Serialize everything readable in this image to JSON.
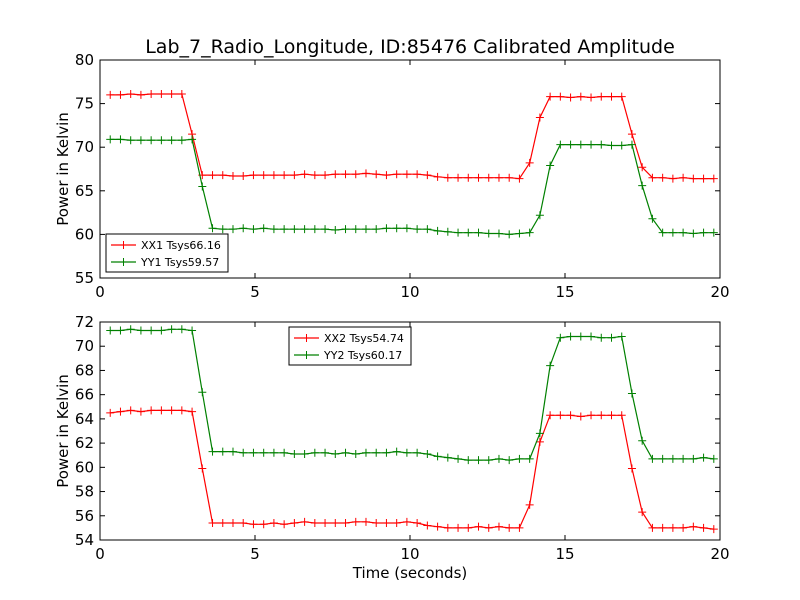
{
  "title": "Lab_7_Radio_Longitude, ID:85476 Calibrated Amplitude",
  "chart_data": [
    {
      "type": "line",
      "xlabel": "",
      "ylabel": "Power in Kelvin",
      "xlim": [
        0,
        20
      ],
      "ylim": [
        55,
        80
      ],
      "xticks": [
        0,
        5,
        10,
        15,
        20
      ],
      "yticks": [
        55,
        60,
        65,
        70,
        75,
        80
      ],
      "grid": false,
      "legend_position": "lower-left",
      "series": [
        {
          "name": "XX1 Tsys66.16",
          "color": "#ff0000",
          "marker": "+",
          "x": [
            0.33,
            0.66,
            0.99,
            1.32,
            1.65,
            1.98,
            2.31,
            2.64,
            2.97,
            3.3,
            3.63,
            3.96,
            4.29,
            4.62,
            4.95,
            5.28,
            5.61,
            5.94,
            6.27,
            6.6,
            6.93,
            7.26,
            7.59,
            7.92,
            8.25,
            8.58,
            8.91,
            9.24,
            9.57,
            9.9,
            10.23,
            10.56,
            10.89,
            11.22,
            11.55,
            11.88,
            12.21,
            12.54,
            12.87,
            13.2,
            13.53,
            13.86,
            14.19,
            14.52,
            14.85,
            15.18,
            15.51,
            15.84,
            16.17,
            16.5,
            16.83,
            17.16,
            17.49,
            17.82,
            18.15,
            18.48,
            18.81,
            19.14,
            19.47,
            19.8
          ],
          "y": [
            76.0,
            76.0,
            76.1,
            76.0,
            76.1,
            76.1,
            76.1,
            76.1,
            71.5,
            66.8,
            66.8,
            66.8,
            66.7,
            66.7,
            66.8,
            66.8,
            66.8,
            66.8,
            66.8,
            66.9,
            66.8,
            66.8,
            66.9,
            66.9,
            66.9,
            67.0,
            66.9,
            66.8,
            66.9,
            66.9,
            66.9,
            66.8,
            66.6,
            66.5,
            66.5,
            66.5,
            66.5,
            66.5,
            66.5,
            66.5,
            66.4,
            68.2,
            73.4,
            75.8,
            75.8,
            75.7,
            75.8,
            75.7,
            75.8,
            75.8,
            75.8,
            71.5,
            67.7,
            66.5,
            66.5,
            66.4,
            66.5,
            66.4,
            66.4,
            66.4
          ]
        },
        {
          "name": "YY1 Tsys59.57",
          "color": "#008000",
          "marker": "+",
          "x": [
            0.33,
            0.66,
            0.99,
            1.32,
            1.65,
            1.98,
            2.31,
            2.64,
            2.97,
            3.3,
            3.63,
            3.96,
            4.29,
            4.62,
            4.95,
            5.28,
            5.61,
            5.94,
            6.27,
            6.6,
            6.93,
            7.26,
            7.59,
            7.92,
            8.25,
            8.58,
            8.91,
            9.24,
            9.57,
            9.9,
            10.23,
            10.56,
            10.89,
            11.22,
            11.55,
            11.88,
            12.21,
            12.54,
            12.87,
            13.2,
            13.53,
            13.86,
            14.19,
            14.52,
            14.85,
            15.18,
            15.51,
            15.84,
            16.17,
            16.5,
            16.83,
            17.16,
            17.49,
            17.82,
            18.15,
            18.48,
            18.81,
            19.14,
            19.47,
            19.8
          ],
          "y": [
            70.9,
            70.9,
            70.8,
            70.8,
            70.8,
            70.8,
            70.8,
            70.8,
            70.9,
            65.5,
            60.7,
            60.6,
            60.6,
            60.7,
            60.6,
            60.7,
            60.6,
            60.6,
            60.6,
            60.6,
            60.6,
            60.6,
            60.5,
            60.6,
            60.6,
            60.6,
            60.6,
            60.7,
            60.7,
            60.7,
            60.6,
            60.6,
            60.4,
            60.3,
            60.2,
            60.2,
            60.2,
            60.1,
            60.1,
            60.0,
            60.1,
            60.2,
            62.2,
            67.9,
            70.3,
            70.3,
            70.3,
            70.3,
            70.3,
            70.2,
            70.2,
            70.3,
            65.6,
            61.8,
            60.2,
            60.2,
            60.2,
            60.1,
            60.2,
            60.2
          ]
        }
      ]
    },
    {
      "type": "line",
      "xlabel": "Time (seconds)",
      "ylabel": "Power in Kelvin",
      "xlim": [
        0,
        20
      ],
      "ylim": [
        54,
        72
      ],
      "xticks": [
        0,
        5,
        10,
        15,
        20
      ],
      "yticks": [
        54,
        56,
        58,
        60,
        62,
        64,
        66,
        68,
        70,
        72
      ],
      "grid": false,
      "legend_position": "upper-center",
      "series": [
        {
          "name": "XX2 Tsys54.74",
          "color": "#ff0000",
          "marker": "+",
          "x": [
            0.33,
            0.66,
            0.99,
            1.32,
            1.65,
            1.98,
            2.31,
            2.64,
            2.97,
            3.3,
            3.63,
            3.96,
            4.29,
            4.62,
            4.95,
            5.28,
            5.61,
            5.94,
            6.27,
            6.6,
            6.93,
            7.26,
            7.59,
            7.92,
            8.25,
            8.58,
            8.91,
            9.24,
            9.57,
            9.9,
            10.23,
            10.56,
            10.89,
            11.22,
            11.55,
            11.88,
            12.21,
            12.54,
            12.87,
            13.2,
            13.53,
            13.86,
            14.19,
            14.52,
            14.85,
            15.18,
            15.51,
            15.84,
            16.17,
            16.5,
            16.83,
            17.16,
            17.49,
            17.82,
            18.15,
            18.48,
            18.81,
            19.14,
            19.47,
            19.8
          ],
          "y": [
            64.5,
            64.6,
            64.7,
            64.6,
            64.7,
            64.7,
            64.7,
            64.7,
            64.6,
            59.9,
            55.4,
            55.4,
            55.4,
            55.4,
            55.3,
            55.3,
            55.4,
            55.3,
            55.4,
            55.5,
            55.4,
            55.4,
            55.4,
            55.4,
            55.5,
            55.5,
            55.4,
            55.4,
            55.4,
            55.5,
            55.4,
            55.2,
            55.1,
            55.0,
            55.0,
            55.0,
            55.1,
            55.0,
            55.1,
            55.0,
            55.0,
            56.9,
            62.1,
            64.3,
            64.3,
            64.3,
            64.2,
            64.3,
            64.3,
            64.3,
            64.3,
            59.9,
            56.3,
            55.0,
            55.0,
            55.0,
            55.0,
            55.1,
            55.0,
            54.9
          ]
        },
        {
          "name": "YY2 Tsys60.17",
          "color": "#008000",
          "marker": "+",
          "x": [
            0.33,
            0.66,
            0.99,
            1.32,
            1.65,
            1.98,
            2.31,
            2.64,
            2.97,
            3.3,
            3.63,
            3.96,
            4.29,
            4.62,
            4.95,
            5.28,
            5.61,
            5.94,
            6.27,
            6.6,
            6.93,
            7.26,
            7.59,
            7.92,
            8.25,
            8.58,
            8.91,
            9.24,
            9.57,
            9.9,
            10.23,
            10.56,
            10.89,
            11.22,
            11.55,
            11.88,
            12.21,
            12.54,
            12.87,
            13.2,
            13.53,
            13.86,
            14.19,
            14.52,
            14.85,
            15.18,
            15.51,
            15.84,
            16.17,
            16.5,
            16.83,
            17.16,
            17.49,
            17.82,
            18.15,
            18.48,
            18.81,
            19.14,
            19.47,
            19.8
          ],
          "y": [
            71.3,
            71.3,
            71.4,
            71.3,
            71.3,
            71.3,
            71.4,
            71.4,
            71.3,
            66.2,
            61.3,
            61.3,
            61.3,
            61.2,
            61.2,
            61.2,
            61.2,
            61.2,
            61.1,
            61.1,
            61.2,
            61.2,
            61.1,
            61.2,
            61.1,
            61.2,
            61.2,
            61.2,
            61.3,
            61.2,
            61.2,
            61.1,
            60.9,
            60.8,
            60.7,
            60.6,
            60.6,
            60.6,
            60.7,
            60.6,
            60.7,
            60.7,
            62.8,
            68.4,
            70.7,
            70.8,
            70.8,
            70.8,
            70.7,
            70.7,
            70.8,
            66.1,
            62.2,
            60.7,
            60.7,
            60.7,
            60.7,
            60.7,
            60.8,
            60.7
          ]
        }
      ]
    }
  ]
}
